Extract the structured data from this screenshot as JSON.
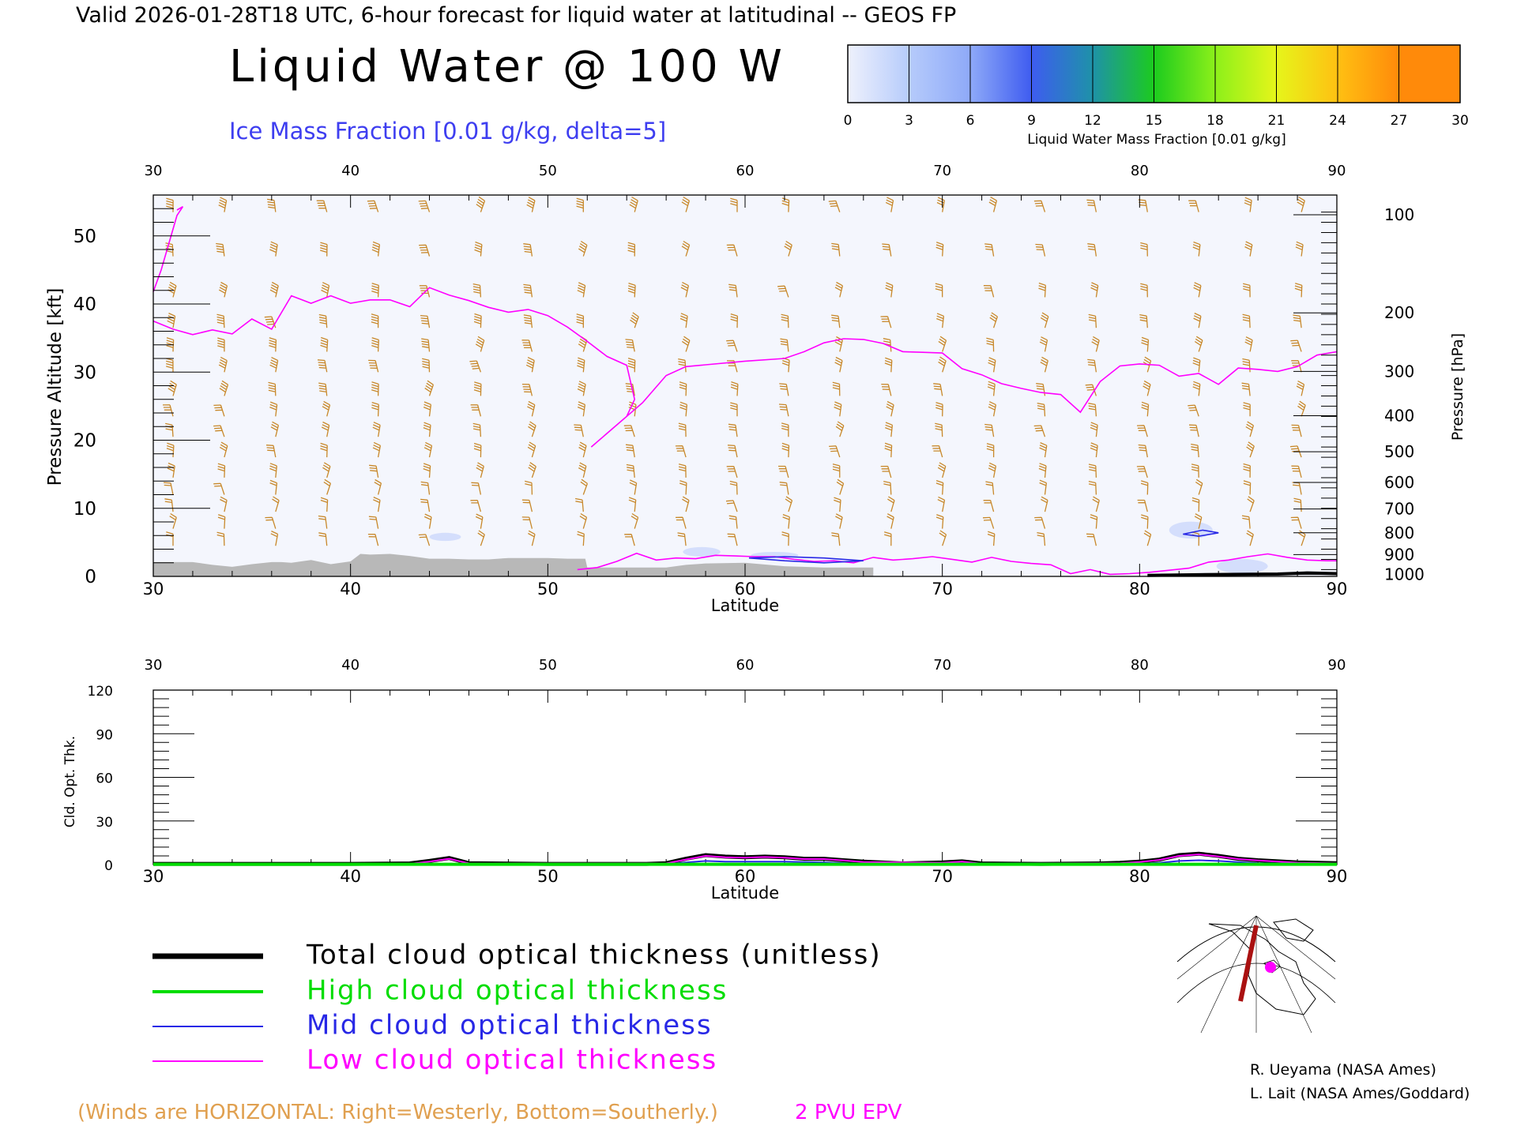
{
  "header": {
    "valid_line": "Valid 2026-01-28T18 UTC, 6-hour forecast for liquid water at latitudinal -- GEOS FP",
    "title": "Liquid Water @ 100 W",
    "subtitle": "Ice Mass Fraction [0.01 g/kg, delta=5]"
  },
  "colorbar": {
    "ticks": [
      "0",
      "3",
      "6",
      "9",
      "12",
      "15",
      "18",
      "21",
      "24",
      "27",
      "30"
    ],
    "label": "Liquid Water Mass Fraction [0.01 g/kg]",
    "colors": [
      "#eef1fc",
      "#b6cbfb",
      "#8ea9f8",
      "#3e5cf0",
      "#1e92a8",
      "#1ccb1e",
      "#8cf01a",
      "#e6f51a",
      "#ffc012",
      "#ff8a0a"
    ]
  },
  "colors": {
    "winds": "#c8882a",
    "epv": "#ff00ff",
    "total": "#000000",
    "high": "#00dd00",
    "mid": "#2828e6",
    "low": "#ff00ff",
    "terrain": "#b8b8b8",
    "liquid_field": "#f4f6fd"
  },
  "chart_data": [
    {
      "type": "line",
      "name": "liquid-water-cross-section",
      "xlabel": "Latitude",
      "ylabel": "Pressure Altitude [kft]",
      "y2label": "Pressure [hPa]",
      "xlim": [
        30,
        90
      ],
      "ylim": [
        0,
        56
      ],
      "x_ticks": [
        "30",
        "40",
        "50",
        "60",
        "70",
        "80",
        "90"
      ],
      "y_ticks": [
        "0",
        "10",
        "20",
        "30",
        "40",
        "50"
      ],
      "pressure_ticks": [
        {
          "hpa": "100",
          "kft": 53.1
        },
        {
          "hpa": "200",
          "kft": 38.7
        },
        {
          "hpa": "300",
          "kft": 30.1
        },
        {
          "hpa": "400",
          "kft": 23.6
        },
        {
          "hpa": "500",
          "kft": 18.3
        },
        {
          "hpa": "600",
          "kft": 13.8
        },
        {
          "hpa": "700",
          "kft": 9.9
        },
        {
          "hpa": "800",
          "kft": 6.4
        },
        {
          "hpa": "900",
          "kft": 3.2
        },
        {
          "hpa": "1000",
          "kft": 0.3
        }
      ],
      "epv_label": "2 PVU EPV",
      "epv_2pvu": {
        "x": [
          30,
          31,
          32,
          33,
          34,
          35,
          36,
          37,
          38,
          39,
          40,
          41,
          42,
          43,
          44,
          45,
          46,
          47,
          48,
          49,
          50,
          51,
          52,
          53,
          54,
          54.4,
          54,
          53,
          52.2,
          53.2,
          54.8,
          56,
          57,
          60,
          62,
          63,
          64,
          65,
          66,
          67,
          68,
          69,
          70,
          71,
          72,
          73,
          74,
          75,
          76,
          77,
          78,
          79,
          80,
          81,
          82,
          83,
          84,
          85,
          86,
          87,
          88,
          89,
          90
        ],
        "y": [
          37.5,
          36.3,
          35.5,
          36.2,
          35.6,
          37.8,
          36.3,
          41.2,
          40.1,
          41.2,
          40.1,
          40.6,
          40.6,
          39.6,
          42.4,
          41.3,
          40.5,
          39.5,
          38.8,
          39.2,
          38.3,
          36.6,
          34.5,
          32.3,
          31.0,
          26.0,
          23.5,
          21.0,
          19.0,
          21.5,
          25.5,
          29.5,
          30.8,
          31.6,
          32.0,
          33.0,
          34.3,
          34.9,
          34.8,
          34.2,
          33.0,
          32.9,
          32.8,
          30.5,
          29.6,
          28.3,
          27.6,
          27.0,
          26.7,
          24.1,
          28.6,
          30.9,
          31.2,
          31.0,
          29.4,
          29.8,
          28.2,
          30.6,
          30.4,
          30.1,
          30.8,
          32.5,
          33.0
        ]
      },
      "epv_2pvu_upper": {
        "x": [
          30,
          30.4,
          30.8,
          31.2,
          31.5,
          31.2
        ],
        "y": [
          41.8,
          45.0,
          49.0,
          53.0,
          54.3,
          53.8
        ]
      },
      "epv_low_level": {
        "x": [
          51.5,
          52.5,
          53.5,
          54.5,
          55.5,
          56.5,
          57.5,
          58.5,
          59.5,
          60.5,
          61.5,
          62.5,
          63.5,
          64.5,
          65.5,
          66.5,
          67.5,
          68.5,
          69.5,
          70.5,
          71.5,
          72.5,
          73.5,
          74.5,
          75.5,
          76.5,
          77.5,
          78.5,
          79.5,
          80.5,
          81.5,
          82.5,
          83.5,
          84.5,
          85.5,
          86.5,
          87.5,
          88.5,
          89.5,
          90
        ],
        "y": [
          1.0,
          1.3,
          2.2,
          3.4,
          2.4,
          2.7,
          2.6,
          3.1,
          3.0,
          2.9,
          2.9,
          2.5,
          2.2,
          2.3,
          2.0,
          2.8,
          2.4,
          2.6,
          2.9,
          2.5,
          2.1,
          2.8,
          2.2,
          1.9,
          1.7,
          0.4,
          1.0,
          0.3,
          0.4,
          0.6,
          0.9,
          1.2,
          2.1,
          2.4,
          2.9,
          3.3,
          2.8,
          2.4,
          2.3,
          2.3
        ]
      },
      "mid_cloud_contours": [
        {
          "x": [
            60.2,
            62,
            64,
            66,
            64,
            62,
            60.2
          ],
          "y": [
            2.7,
            2.9,
            2.7,
            2.3,
            2.0,
            2.3,
            2.7
          ]
        },
        {
          "x": [
            82.2,
            83.2,
            84.0,
            83.0,
            82.2
          ],
          "y": [
            6.2,
            6.8,
            6.4,
            5.9,
            6.2
          ]
        }
      ],
      "ice_blobs": [
        {
          "lat": 44.8,
          "kft": 5.8,
          "w": 1.6,
          "h": 1.2
        },
        {
          "lat": 57.8,
          "kft": 3.6,
          "w": 1.9,
          "h": 1.4
        },
        {
          "lat": 61.5,
          "kft": 3.1,
          "w": 2.4,
          "h": 1.0
        },
        {
          "lat": 82.6,
          "kft": 6.8,
          "w": 2.2,
          "h": 2.5
        },
        {
          "lat": 85.2,
          "kft": 1.5,
          "w": 2.6,
          "h": 2.1
        }
      ],
      "terrain": {
        "x": [
          30,
          32,
          32.5,
          33,
          34,
          35,
          36,
          36.5,
          37,
          38,
          38.5,
          39,
          40,
          40.5,
          41,
          42,
          43,
          44,
          45,
          46,
          47,
          48,
          49,
          50,
          51,
          51.9,
          52,
          53,
          56,
          57,
          58,
          60,
          62,
          64,
          65,
          66,
          66.5
        ],
        "y": [
          2.1,
          2.1,
          1.9,
          1.7,
          1.4,
          1.8,
          2.1,
          2.1,
          2.0,
          2.4,
          2.1,
          1.8,
          2.2,
          3.3,
          3.2,
          3.3,
          3.0,
          2.6,
          2.6,
          2.5,
          2.5,
          2.7,
          2.7,
          2.7,
          2.6,
          2.6,
          1.3,
          1.3,
          1.3,
          1.7,
          1.9,
          2.0,
          1.5,
          1.3,
          1.3,
          1.3,
          1.3
        ]
      },
      "surface_black": {
        "x": [
          80.4,
          83,
          85,
          87,
          88.5,
          90
        ],
        "y": [
          0.15,
          0.25,
          0.3,
          0.35,
          0.5,
          0.4
        ]
      }
    },
    {
      "type": "line",
      "name": "cloud-optical-thickness",
      "xlabel": "Latitude",
      "ylabel": "Cld. Opt. Thk.",
      "xlim": [
        30,
        90
      ],
      "ylim": [
        0,
        120
      ],
      "x_ticks": [
        "30",
        "40",
        "50",
        "60",
        "70",
        "80",
        "90"
      ],
      "y_ticks": [
        "0",
        "30",
        "60",
        "90",
        "120"
      ],
      "series": [
        {
          "name": "Total cloud optical thickness (unitless)",
          "color": "#000000",
          "x": [
            30,
            35,
            40,
            43,
            44,
            45,
            46,
            50,
            55,
            56,
            57,
            58,
            59,
            60,
            61,
            62,
            63,
            64,
            65,
            66,
            68,
            70,
            71,
            72,
            75,
            78,
            79,
            80,
            81,
            82,
            83,
            84,
            85,
            86,
            88,
            90
          ],
          "y": [
            0.5,
            0.5,
            0.5,
            0.8,
            2.5,
            4.5,
            1.0,
            0.5,
            0.5,
            1.0,
            4.0,
            6.5,
            5.5,
            5.0,
            5.5,
            5.0,
            4.0,
            4.0,
            3.0,
            2.0,
            0.8,
            1.5,
            2.2,
            0.8,
            0.5,
            0.8,
            1.2,
            2.0,
            3.5,
            6.5,
            7.5,
            6.0,
            4.0,
            3.0,
            1.5,
            1.0
          ]
        },
        {
          "name": "High cloud optical thickness",
          "color": "#00dd00",
          "x": [
            30,
            90
          ],
          "y": [
            0.2,
            0.2
          ]
        },
        {
          "name": "Mid cloud optical thickness",
          "color": "#2828e6",
          "x": [
            30,
            56,
            57,
            58,
            59,
            60,
            62,
            64,
            66,
            70,
            72,
            80,
            81,
            82,
            83,
            84,
            86,
            90
          ],
          "y": [
            0.1,
            0.2,
            1.5,
            2.5,
            2.0,
            2.0,
            2.0,
            1.5,
            0.5,
            0.5,
            0.8,
            0.5,
            1.2,
            2.5,
            3.0,
            2.5,
            1.0,
            0.3
          ]
        },
        {
          "name": "Low cloud optical thickness",
          "color": "#ff00ff",
          "x": [
            30,
            43,
            44,
            45,
            46,
            56,
            57,
            58,
            59,
            60,
            61,
            62,
            63,
            64,
            65,
            66,
            70,
            71,
            72,
            79,
            80,
            81,
            82,
            83,
            84,
            85,
            86,
            88,
            90
          ],
          "y": [
            0.3,
            0.5,
            2.0,
            4.0,
            0.8,
            0.8,
            3.5,
            6.0,
            5.0,
            4.8,
            5.2,
            4.8,
            3.8,
            3.8,
            2.8,
            1.8,
            1.2,
            2.0,
            0.6,
            1.0,
            1.8,
            3.2,
            6.0,
            7.0,
            5.6,
            3.8,
            2.8,
            1.3,
            0.8
          ]
        }
      ]
    }
  ],
  "legend": {
    "total": "Total cloud optical thickness (unitless)",
    "high": "High cloud optical thickness",
    "mid": "Mid cloud optical thickness",
    "low": "Low cloud optical thickness"
  },
  "winds_note": "(Winds are HORIZONTAL: Right=Westerly, Bottom=Southerly.)",
  "credits": {
    "line1": "R. Ueyama (NASA Ames)",
    "line2": "L. Lait (NASA Ames/Goddard)"
  }
}
